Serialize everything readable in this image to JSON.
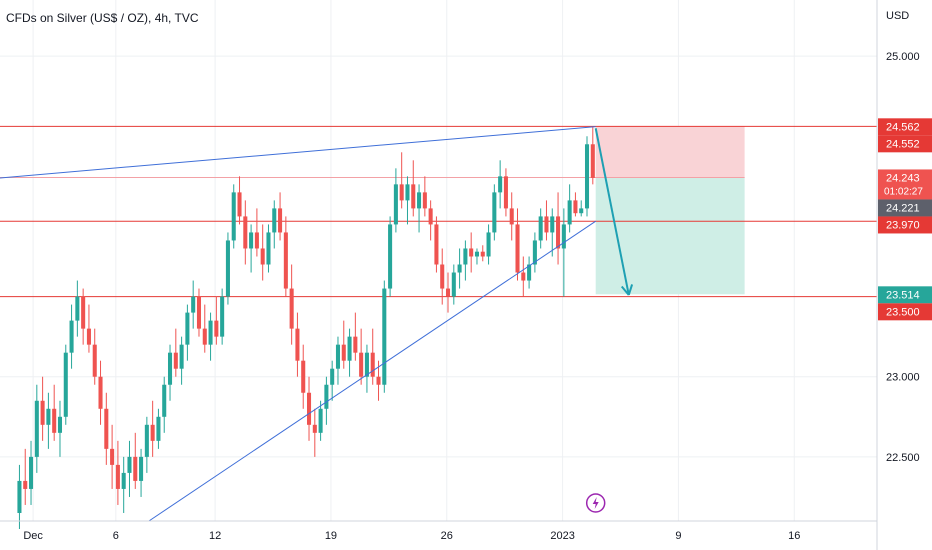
{
  "header": {
    "symbol_title": "CFDs on Silver (US$ / OZ), 4h, TVC"
  },
  "colors": {
    "up": "#26a69a",
    "down": "#ef5350",
    "hline": "#e53935",
    "trendline": "#3f6fd8",
    "stop_zone": "#f9d3d6",
    "target_zone": "#cfeee6",
    "arrow": "#1ea0b3",
    "axis_text": "#131722",
    "grid": "#eef0f3",
    "divider": "#d1d4dc"
  },
  "chart_data": {
    "type": "candlestick",
    "title": "CFDs on Silver (US$ / OZ), 4h, TVC",
    "currency_label": "USD",
    "y_ticks": [
      "25.000",
      "23.000",
      "22.500"
    ],
    "y_tick_values": [
      25.0,
      23.0,
      22.5
    ],
    "x_ticks": [
      "Dec",
      "6",
      "12",
      "19",
      "26",
      "2023",
      "9",
      "16"
    ],
    "x_tick_values": [
      "2022-12-01",
      "2022-12-06",
      "2022-12-12",
      "2022-12-19",
      "2022-12-26",
      "2023-01-02",
      "2023-01-09",
      "2023-01-16"
    ],
    "y_range": [
      22.1,
      25.35
    ],
    "x_range": [
      "2022-11-29",
      "2023-01-21"
    ],
    "grid": true,
    "price_tags": [
      {
        "value": 24.562,
        "label": "24.562",
        "bg": "#e53935",
        "fg": "#ffffff"
      },
      {
        "value": 24.552,
        "label": "24.552",
        "bg": "#e53935",
        "fg": "#ffffff"
      },
      {
        "value": 24.243,
        "label": "24.243",
        "sub": "01:02:27",
        "bg": "#ef5350",
        "fg": "#ffffff"
      },
      {
        "value": 24.221,
        "label": "24.221",
        "bg": "#5d606b",
        "fg": "#ffffff"
      },
      {
        "value": 23.97,
        "label": "23.970",
        "bg": "#e53935",
        "fg": "#ffffff"
      },
      {
        "value": 23.514,
        "label": "23.514",
        "bg": "#26a69a",
        "fg": "#ffffff"
      },
      {
        "value": 23.5,
        "label": "23.500",
        "bg": "#e53935",
        "fg": "#ffffff"
      }
    ],
    "horizontal_lines": [
      24.562,
      23.97,
      23.5
    ],
    "trendlines": [
      {
        "from": [
          "2022-11-29",
          24.24
        ],
        "to": [
          "2023-01-04",
          24.56
        ]
      },
      {
        "from": [
          "2022-12-08",
          22.1
        ],
        "to": [
          "2023-01-04",
          23.97
        ]
      }
    ],
    "short_position": {
      "from": "2023-01-04",
      "to": "2023-01-13",
      "entry": 24.243,
      "stop": 24.562,
      "target": 23.514
    },
    "projection_arrow": {
      "from": [
        "2023-01-04",
        24.55
      ],
      "to": [
        "2023-01-06",
        23.51
      ]
    },
    "annotation": "lightning-event",
    "annotation_date": "2023-01-04",
    "candles": [
      {
        "o": 22.15,
        "h": 22.45,
        "l": 22.05,
        "c": 22.35
      },
      {
        "o": 22.35,
        "h": 22.55,
        "l": 22.2,
        "c": 22.3
      },
      {
        "o": 22.3,
        "h": 22.6,
        "l": 22.2,
        "c": 22.5
      },
      {
        "o": 22.5,
        "h": 22.95,
        "l": 22.4,
        "c": 22.85
      },
      {
        "o": 22.85,
        "h": 23.0,
        "l": 22.6,
        "c": 22.7
      },
      {
        "o": 22.7,
        "h": 22.9,
        "l": 22.55,
        "c": 22.8
      },
      {
        "o": 22.8,
        "h": 22.95,
        "l": 22.6,
        "c": 22.65
      },
      {
        "o": 22.65,
        "h": 22.85,
        "l": 22.5,
        "c": 22.75
      },
      {
        "o": 22.75,
        "h": 23.2,
        "l": 22.7,
        "c": 23.15
      },
      {
        "o": 23.15,
        "h": 23.45,
        "l": 23.05,
        "c": 23.35
      },
      {
        "o": 23.35,
        "h": 23.6,
        "l": 23.25,
        "c": 23.5
      },
      {
        "o": 23.5,
        "h": 23.55,
        "l": 23.2,
        "c": 23.3
      },
      {
        "o": 23.3,
        "h": 23.45,
        "l": 23.15,
        "c": 23.2
      },
      {
        "o": 23.2,
        "h": 23.3,
        "l": 22.95,
        "c": 23.0
      },
      {
        "o": 23.0,
        "h": 23.1,
        "l": 22.7,
        "c": 22.8
      },
      {
        "o": 22.8,
        "h": 22.9,
        "l": 22.45,
        "c": 22.55
      },
      {
        "o": 22.55,
        "h": 22.7,
        "l": 22.3,
        "c": 22.45
      },
      {
        "o": 22.45,
        "h": 22.6,
        "l": 22.2,
        "c": 22.3
      },
      {
        "o": 22.3,
        "h": 22.5,
        "l": 22.15,
        "c": 22.4
      },
      {
        "o": 22.4,
        "h": 22.6,
        "l": 22.25,
        "c": 22.5
      },
      {
        "o": 22.5,
        "h": 22.65,
        "l": 22.3,
        "c": 22.35
      },
      {
        "o": 22.35,
        "h": 22.55,
        "l": 22.25,
        "c": 22.5
      },
      {
        "o": 22.5,
        "h": 22.75,
        "l": 22.4,
        "c": 22.7
      },
      {
        "o": 22.7,
        "h": 22.85,
        "l": 22.5,
        "c": 22.6
      },
      {
        "o": 22.6,
        "h": 22.8,
        "l": 22.55,
        "c": 22.75
      },
      {
        "o": 22.75,
        "h": 23.0,
        "l": 22.65,
        "c": 22.95
      },
      {
        "o": 22.95,
        "h": 23.2,
        "l": 22.85,
        "c": 23.15
      },
      {
        "o": 23.15,
        "h": 23.3,
        "l": 23.0,
        "c": 23.05
      },
      {
        "o": 23.05,
        "h": 23.25,
        "l": 22.95,
        "c": 23.2
      },
      {
        "o": 23.2,
        "h": 23.45,
        "l": 23.1,
        "c": 23.4
      },
      {
        "o": 23.4,
        "h": 23.6,
        "l": 23.3,
        "c": 23.5
      },
      {
        "o": 23.5,
        "h": 23.55,
        "l": 23.25,
        "c": 23.3
      },
      {
        "o": 23.3,
        "h": 23.45,
        "l": 23.15,
        "c": 23.2
      },
      {
        "o": 23.2,
        "h": 23.4,
        "l": 23.1,
        "c": 23.35
      },
      {
        "o": 23.35,
        "h": 23.5,
        "l": 23.2,
        "c": 23.25
      },
      {
        "o": 23.25,
        "h": 23.55,
        "l": 23.2,
        "c": 23.5
      },
      {
        "o": 23.5,
        "h": 23.9,
        "l": 23.45,
        "c": 23.85
      },
      {
        "o": 23.85,
        "h": 24.2,
        "l": 23.8,
        "c": 24.15
      },
      {
        "o": 24.15,
        "h": 24.25,
        "l": 23.95,
        "c": 24.0
      },
      {
        "o": 24.0,
        "h": 24.1,
        "l": 23.7,
        "c": 23.8
      },
      {
        "o": 23.8,
        "h": 23.95,
        "l": 23.65,
        "c": 23.9
      },
      {
        "o": 23.9,
        "h": 24.05,
        "l": 23.75,
        "c": 23.8
      },
      {
        "o": 23.8,
        "h": 23.95,
        "l": 23.6,
        "c": 23.7
      },
      {
        "o": 23.7,
        "h": 23.95,
        "l": 23.65,
        "c": 23.9
      },
      {
        "o": 23.9,
        "h": 24.1,
        "l": 23.8,
        "c": 24.05
      },
      {
        "o": 24.05,
        "h": 24.15,
        "l": 23.85,
        "c": 23.9
      },
      {
        "o": 23.9,
        "h": 24.0,
        "l": 23.5,
        "c": 23.55
      },
      {
        "o": 23.55,
        "h": 23.7,
        "l": 23.2,
        "c": 23.3
      },
      {
        "o": 23.3,
        "h": 23.4,
        "l": 23.0,
        "c": 23.1
      },
      {
        "o": 23.1,
        "h": 23.2,
        "l": 22.8,
        "c": 22.9
      },
      {
        "o": 22.9,
        "h": 23.0,
        "l": 22.6,
        "c": 22.7
      },
      {
        "o": 22.7,
        "h": 22.8,
        "l": 22.5,
        "c": 22.65
      },
      {
        "o": 22.65,
        "h": 22.85,
        "l": 22.6,
        "c": 22.8
      },
      {
        "o": 22.8,
        "h": 23.0,
        "l": 22.7,
        "c": 22.95
      },
      {
        "o": 22.95,
        "h": 23.1,
        "l": 22.85,
        "c": 23.05
      },
      {
        "o": 23.05,
        "h": 23.25,
        "l": 22.95,
        "c": 23.2
      },
      {
        "o": 23.2,
        "h": 23.35,
        "l": 23.05,
        "c": 23.1
      },
      {
        "o": 23.1,
        "h": 23.3,
        "l": 23.0,
        "c": 23.25
      },
      {
        "o": 23.25,
        "h": 23.4,
        "l": 23.1,
        "c": 23.15
      },
      {
        "o": 23.15,
        "h": 23.3,
        "l": 22.95,
        "c": 23.0
      },
      {
        "o": 23.0,
        "h": 23.2,
        "l": 22.9,
        "c": 23.15
      },
      {
        "o": 23.15,
        "h": 23.3,
        "l": 22.95,
        "c": 23.0
      },
      {
        "o": 23.0,
        "h": 23.1,
        "l": 22.85,
        "c": 22.95
      },
      {
        "o": 22.95,
        "h": 23.6,
        "l": 22.9,
        "c": 23.55
      },
      {
        "o": 23.55,
        "h": 24.0,
        "l": 23.5,
        "c": 23.95
      },
      {
        "o": 23.95,
        "h": 24.3,
        "l": 23.9,
        "c": 24.2
      },
      {
        "o": 24.2,
        "h": 24.4,
        "l": 24.05,
        "c": 24.1
      },
      {
        "o": 24.1,
        "h": 24.25,
        "l": 23.95,
        "c": 24.2
      },
      {
        "o": 24.2,
        "h": 24.35,
        "l": 24.0,
        "c": 24.05
      },
      {
        "o": 24.05,
        "h": 24.2,
        "l": 23.9,
        "c": 24.15
      },
      {
        "o": 24.15,
        "h": 24.25,
        "l": 24.0,
        "c": 24.05
      },
      {
        "o": 24.05,
        "h": 24.1,
        "l": 23.85,
        "c": 23.95
      },
      {
        "o": 23.95,
        "h": 24.0,
        "l": 23.65,
        "c": 23.7
      },
      {
        "o": 23.7,
        "h": 23.8,
        "l": 23.45,
        "c": 23.55
      },
      {
        "o": 23.55,
        "h": 23.65,
        "l": 23.4,
        "c": 23.5
      },
      {
        "o": 23.5,
        "h": 23.7,
        "l": 23.45,
        "c": 23.65
      },
      {
        "o": 23.65,
        "h": 23.8,
        "l": 23.55,
        "c": 23.7
      },
      {
        "o": 23.7,
        "h": 23.85,
        "l": 23.6,
        "c": 23.8
      },
      {
        "o": 23.8,
        "h": 23.9,
        "l": 23.65,
        "c": 23.75
      },
      {
        "o": 23.75,
        "h": 23.8,
        "l": 23.7,
        "c": 23.78
      },
      {
        "o": 23.78,
        "h": 23.82,
        "l": 23.72,
        "c": 23.75
      },
      {
        "o": 23.75,
        "h": 23.95,
        "l": 23.7,
        "c": 23.9
      },
      {
        "o": 23.9,
        "h": 24.2,
        "l": 23.85,
        "c": 24.15
      },
      {
        "o": 24.15,
        "h": 24.35,
        "l": 24.05,
        "c": 24.25
      },
      {
        "o": 24.25,
        "h": 24.3,
        "l": 24.0,
        "c": 24.05
      },
      {
        "o": 24.05,
        "h": 24.15,
        "l": 23.85,
        "c": 23.95
      },
      {
        "o": 23.95,
        "h": 24.05,
        "l": 23.6,
        "c": 23.65
      },
      {
        "o": 23.65,
        "h": 23.75,
        "l": 23.5,
        "c": 23.6
      },
      {
        "o": 23.6,
        "h": 23.75,
        "l": 23.55,
        "c": 23.7
      },
      {
        "o": 23.7,
        "h": 23.9,
        "l": 23.65,
        "c": 23.85
      },
      {
        "o": 23.85,
        "h": 24.05,
        "l": 23.8,
        "c": 24.0
      },
      {
        "o": 24.0,
        "h": 24.1,
        "l": 23.85,
        "c": 23.9
      },
      {
        "o": 23.9,
        "h": 24.05,
        "l": 23.75,
        "c": 24.0
      },
      {
        "o": 24.0,
        "h": 24.15,
        "l": 23.7,
        "c": 23.8
      },
      {
        "o": 23.8,
        "h": 24.05,
        "l": 23.5,
        "c": 23.95
      },
      {
        "o": 23.95,
        "h": 24.2,
        "l": 23.9,
        "c": 24.1
      },
      {
        "o": 24.1,
        "h": 24.15,
        "l": 24.0,
        "c": 24.02
      },
      {
        "o": 24.02,
        "h": 24.1,
        "l": 24.0,
        "c": 24.05
      },
      {
        "o": 24.05,
        "h": 24.5,
        "l": 24.0,
        "c": 24.45
      },
      {
        "o": 24.45,
        "h": 24.56,
        "l": 24.2,
        "c": 24.24
      }
    ]
  }
}
